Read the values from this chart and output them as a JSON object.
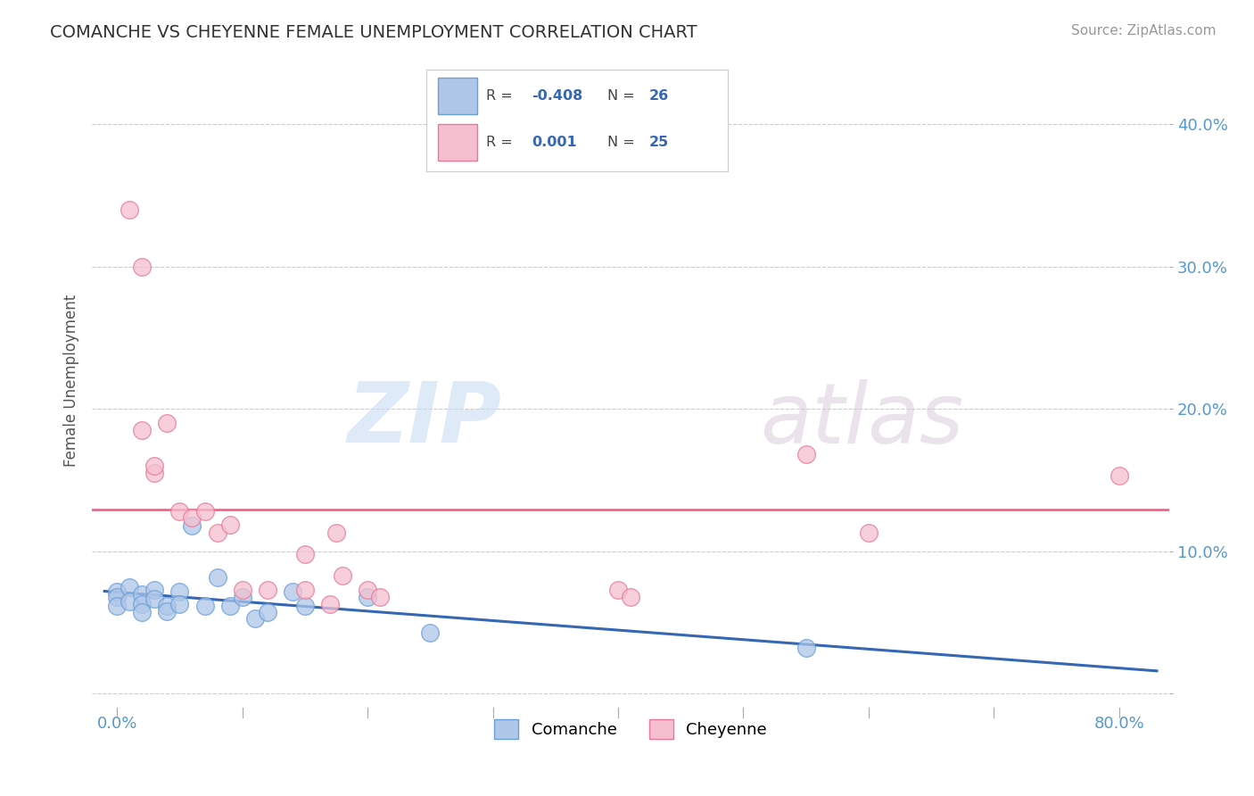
{
  "title": "COMANCHE VS CHEYENNE FEMALE UNEMPLOYMENT CORRELATION CHART",
  "source_text": "Source: ZipAtlas.com",
  "ylabel": "Female Unemployment",
  "xlim": [
    -0.02,
    0.84
  ],
  "ylim": [
    -0.01,
    0.45
  ],
  "xticks": [
    0.0,
    0.1,
    0.2,
    0.3,
    0.4,
    0.5,
    0.6,
    0.7,
    0.8
  ],
  "xticklabels": [
    "0.0%",
    "",
    "",
    "",
    "",
    "",
    "",
    "",
    "80.0%"
  ],
  "yticks": [
    0.0,
    0.1,
    0.2,
    0.3,
    0.4
  ],
  "yticklabels": [
    "",
    "10.0%",
    "20.0%",
    "30.0%",
    "40.0%"
  ],
  "comanche_x": [
    0.0,
    0.0,
    0.0,
    0.01,
    0.01,
    0.02,
    0.02,
    0.02,
    0.03,
    0.03,
    0.04,
    0.04,
    0.05,
    0.05,
    0.06,
    0.07,
    0.08,
    0.09,
    0.1,
    0.11,
    0.12,
    0.14,
    0.15,
    0.2,
    0.25,
    0.55
  ],
  "comanche_y": [
    0.072,
    0.068,
    0.062,
    0.075,
    0.065,
    0.07,
    0.063,
    0.057,
    0.073,
    0.067,
    0.062,
    0.058,
    0.072,
    0.063,
    0.118,
    0.062,
    0.082,
    0.062,
    0.068,
    0.053,
    0.057,
    0.072,
    0.062,
    0.068,
    0.043,
    0.032
  ],
  "cheyenne_x": [
    0.01,
    0.02,
    0.02,
    0.03,
    0.03,
    0.04,
    0.05,
    0.06,
    0.07,
    0.08,
    0.09,
    0.1,
    0.12,
    0.15,
    0.15,
    0.17,
    0.175,
    0.18,
    0.2,
    0.21,
    0.4,
    0.41,
    0.55,
    0.6,
    0.8
  ],
  "cheyenne_y": [
    0.34,
    0.3,
    0.185,
    0.155,
    0.16,
    0.19,
    0.128,
    0.124,
    0.128,
    0.113,
    0.119,
    0.073,
    0.073,
    0.073,
    0.098,
    0.063,
    0.113,
    0.083,
    0.073,
    0.068,
    0.073,
    0.068,
    0.168,
    0.113,
    0.153
  ],
  "comanche_R": "-0.408",
  "comanche_N": "26",
  "cheyenne_R": "0.001",
  "cheyenne_N": "25",
  "comanche_color": "#aec6e8",
  "cheyenne_color": "#f5bfd0",
  "comanche_edge_color": "#6a9fd8",
  "cheyenne_edge_color": "#e87898",
  "comanche_line_color": "#3567b5",
  "cheyenne_line_color": "#e06080",
  "blue_text_color": "#3567b5",
  "dark_text_color": "#444444",
  "axis_tick_color": "#5599cc",
  "grid_color": "#cccccc",
  "watermark_zip": "ZIP",
  "watermark_atlas": "atlas",
  "background_color": "#ffffff",
  "title_color": "#333333"
}
